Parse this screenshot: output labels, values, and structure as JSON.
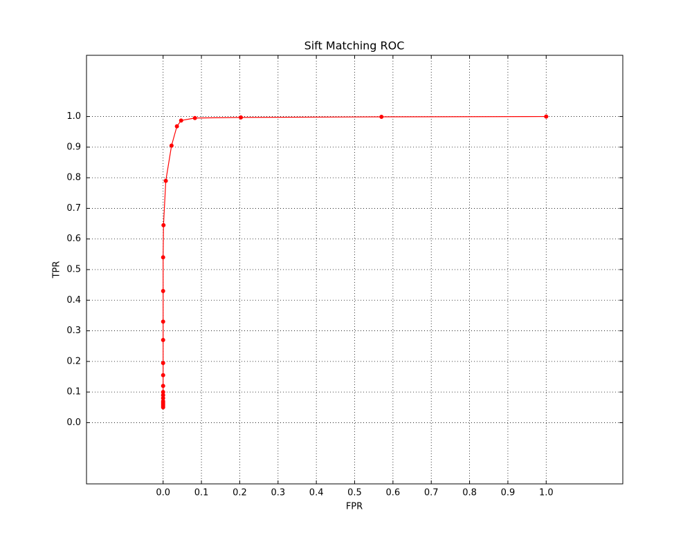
{
  "chart_data": {
    "type": "line",
    "title": "Sift Matching ROC",
    "x_label": "FPR",
    "y_label": "TPR",
    "x": [
      0,
      0,
      0,
      0,
      0,
      0,
      0,
      0,
      0,
      0,
      0,
      0,
      0,
      0,
      0,
      0.001,
      0.007,
      0.022,
      0.036,
      0.047,
      0.083,
      0.203,
      0.57,
      1.0
    ],
    "values": [
      0.05,
      0.055,
      0.06,
      0.065,
      0.07,
      0.08,
      0.09,
      0.1,
      0.12,
      0.155,
      0.195,
      0.27,
      0.33,
      0.43,
      0.54,
      0.645,
      0.79,
      0.905,
      0.968,
      0.987,
      0.995,
      0.997,
      0.999,
      1.0
    ],
    "color": "#ff0000",
    "xlim": [
      -0.2,
      1.2
    ],
    "ylim": [
      -0.2,
      1.2
    ],
    "xticks": [
      {
        "value": 0,
        "label": "0.0"
      },
      0.1,
      0.2,
      0.3,
      0.4,
      0.5,
      0.6,
      0.7,
      0.8,
      0.9,
      {
        "value": 1,
        "label": "1.0"
      }
    ],
    "yticks": [
      {
        "value": 0,
        "label": "0.0"
      },
      0.1,
      0.2,
      0.3,
      0.4,
      0.5,
      0.6,
      0.7,
      0.8,
      0.9,
      {
        "value": 1,
        "label": "1.0"
      }
    ],
    "grid": true
  }
}
